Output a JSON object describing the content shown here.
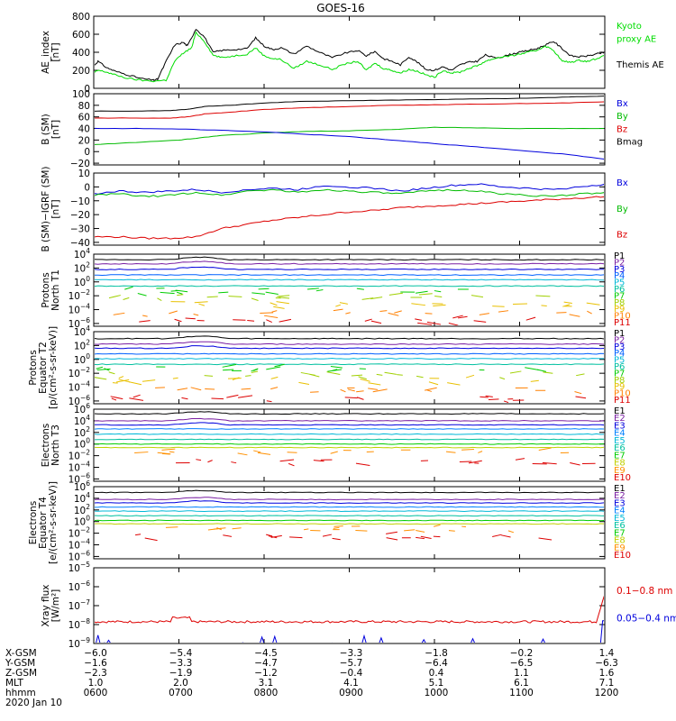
{
  "title": "GOES-16",
  "chart_data": [
    {
      "id": "ae",
      "type": "line",
      "ylabel": [
        "AE_index",
        "[nT]"
      ],
      "ylim": [
        0,
        800
      ],
      "yticks": [
        {
          "v": 0,
          "t": "0"
        },
        {
          "v": 200,
          "t": "200"
        },
        {
          "v": 400,
          "t": "400"
        },
        {
          "v": 600,
          "t": "600"
        },
        {
          "v": 800,
          "t": "800"
        }
      ],
      "legend": [
        {
          "text": "Kyoto",
          "color": "#00dd00",
          "row": 0
        },
        {
          "text": "proxy AE",
          "color": "#00dd00",
          "row": 1
        },
        {
          "text": "Themis AE",
          "color": "#000000",
          "row": 3
        }
      ],
      "series": [
        {
          "name": "Themis AE",
          "color": "#000000",
          "x": [
            6.0,
            6.05,
            6.15,
            6.25,
            6.4,
            6.55,
            6.7,
            6.75,
            6.85,
            6.95,
            7.05,
            7.1,
            7.2,
            7.3,
            7.4,
            7.5,
            7.65,
            7.8,
            7.9,
            8.0,
            8.1,
            8.2,
            8.35,
            8.5,
            8.65,
            8.8,
            8.95,
            9.1,
            9.2,
            9.3,
            9.4,
            9.5,
            9.6,
            9.7,
            9.8,
            9.9,
            10.0,
            10.1,
            10.2,
            10.3,
            10.4,
            10.5,
            10.6,
            10.7,
            10.8,
            10.9,
            11.0,
            11.1,
            11.2,
            11.3,
            11.4,
            11.5,
            11.6,
            11.7,
            11.8,
            11.9,
            12.0
          ],
          "y": [
            250,
            300,
            230,
            190,
            150,
            110,
            90,
            100,
            300,
            480,
            510,
            470,
            660,
            570,
            400,
            420,
            430,
            440,
            560,
            470,
            430,
            450,
            380,
            470,
            400,
            340,
            390,
            420,
            360,
            410,
            330,
            300,
            260,
            350,
            290,
            210,
            200,
            240,
            200,
            260,
            290,
            300,
            370,
            340,
            350,
            380,
            400,
            420,
            440,
            480,
            520,
            440,
            360,
            350,
            360,
            380,
            400
          ]
        },
        {
          "name": "Kyoto proxy AE",
          "color": "#00dd00",
          "x": [
            6.0,
            6.05,
            6.15,
            6.25,
            6.4,
            6.55,
            6.7,
            6.85,
            6.95,
            7.05,
            7.15,
            7.2,
            7.3,
            7.4,
            7.5,
            7.65,
            7.8,
            7.9,
            8.0,
            8.1,
            8.2,
            8.35,
            8.5,
            8.65,
            8.8,
            8.95,
            9.1,
            9.2,
            9.3,
            9.4,
            9.5,
            9.6,
            9.7,
            9.8,
            9.9,
            10.0,
            10.1,
            10.2,
            10.3,
            10.4,
            10.5,
            10.6,
            10.7,
            10.8,
            10.9,
            11.0,
            11.1,
            11.2,
            11.3,
            11.4,
            11.5,
            11.6,
            11.7,
            11.8,
            11.9,
            12.0
          ],
          "y": [
            170,
            200,
            180,
            150,
            110,
            90,
            80,
            90,
            300,
            390,
            450,
            620,
            520,
            370,
            340,
            360,
            380,
            450,
            360,
            330,
            320,
            220,
            300,
            260,
            210,
            270,
            300,
            200,
            280,
            220,
            200,
            170,
            210,
            190,
            150,
            120,
            200,
            170,
            180,
            220,
            250,
            300,
            330,
            350,
            360,
            380,
            400,
            420,
            470,
            420,
            300,
            290,
            310,
            300,
            330,
            360
          ]
        }
      ]
    },
    {
      "id": "bsm",
      "type": "line",
      "ylabel": [
        "B (SM)",
        "[nT]"
      ],
      "ylim": [
        -23,
        100
      ],
      "yticks": [
        {
          "v": -20,
          "t": "−20"
        },
        {
          "v": 0,
          "t": "0"
        },
        {
          "v": 20,
          "t": "20"
        },
        {
          "v": 40,
          "t": "40"
        },
        {
          "v": 60,
          "t": "60"
        },
        {
          "v": 80,
          "t": "80"
        },
        {
          "v": 100,
          "t": "100"
        }
      ],
      "legend": [
        {
          "text": "Bx",
          "color": "#0000dd",
          "row": 0
        },
        {
          "text": "By",
          "color": "#00bb00",
          "row": 1
        },
        {
          "text": "Bz",
          "color": "#dd0000",
          "row": 2
        },
        {
          "text": "Bmag",
          "color": "#000000",
          "row": 3
        }
      ],
      "series": [
        {
          "name": "Bmag",
          "color": "#000000",
          "x": [
            6.0,
            6.5,
            6.9,
            7.1,
            7.3,
            7.6,
            8.0,
            8.5,
            9.0,
            9.5,
            10.0,
            10.5,
            11.0,
            11.5,
            12.0
          ],
          "y": [
            70,
            70,
            71,
            73,
            78,
            80,
            84,
            87,
            88,
            89,
            90,
            91,
            92,
            94,
            96
          ]
        },
        {
          "name": "Bz",
          "color": "#dd0000",
          "x": [
            6.0,
            6.5,
            6.9,
            7.1,
            7.3,
            7.6,
            8.0,
            8.5,
            9.0,
            9.5,
            10.0,
            10.5,
            11.0,
            11.5,
            12.0
          ],
          "y": [
            58,
            58,
            58,
            60,
            65,
            68,
            73,
            76,
            78,
            80,
            81,
            82,
            83,
            84,
            86
          ]
        },
        {
          "name": "By",
          "color": "#00bb00",
          "x": [
            6.0,
            6.5,
            7.0,
            7.2,
            7.5,
            8.0,
            8.5,
            9.0,
            9.5,
            10.0,
            10.5,
            11.0,
            11.5,
            12.0
          ],
          "y": [
            12,
            16,
            20,
            23,
            28,
            32,
            35,
            36,
            38,
            42,
            41,
            40,
            40,
            40
          ]
        },
        {
          "name": "Bx",
          "color": "#0000dd",
          "x": [
            6.0,
            6.5,
            7.0,
            7.5,
            8.0,
            8.5,
            9.0,
            9.5,
            10.0,
            10.5,
            11.0,
            11.5,
            12.0
          ],
          "y": [
            40,
            40,
            39,
            37,
            34,
            30,
            26,
            20,
            14,
            8,
            2,
            -4,
            -13
          ]
        }
      ]
    },
    {
      "id": "bigrf",
      "type": "line",
      "ylabel": [
        "B (SM)−IGRF (SM)",
        "[nT]"
      ],
      "ylim": [
        -42,
        10
      ],
      "yticks": [
        {
          "v": -40,
          "t": "−40"
        },
        {
          "v": -30,
          "t": "−30"
        },
        {
          "v": -20,
          "t": "−20"
        },
        {
          "v": -10,
          "t": "−10"
        },
        {
          "v": 0,
          "t": "0"
        },
        {
          "v": 10,
          "t": "10"
        }
      ],
      "legend": [
        {
          "text": "Bx",
          "color": "#0000dd",
          "row": 0
        },
        {
          "text": "By",
          "color": "#00bb00",
          "row": 2
        },
        {
          "text": "Bz",
          "color": "#dd0000",
          "row": 4
        }
      ],
      "series": [
        {
          "name": "Bx",
          "color": "#0000dd",
          "x": [
            6.0,
            6.3,
            6.6,
            6.9,
            7.2,
            7.5,
            7.8,
            8.1,
            8.4,
            8.7,
            9.0,
            9.3,
            9.6,
            9.9,
            10.2,
            10.5,
            10.8,
            11.1,
            11.4,
            11.7,
            12.0
          ],
          "y": [
            -5,
            -3,
            -4,
            -3,
            -2,
            -4,
            -2,
            -1,
            -2,
            1,
            0,
            -1,
            -3,
            -1,
            1,
            2,
            0,
            -1,
            -2,
            0,
            2
          ]
        },
        {
          "name": "By",
          "color": "#00bb00",
          "x": [
            6.0,
            6.3,
            6.6,
            6.9,
            7.2,
            7.5,
            7.8,
            8.1,
            8.4,
            8.7,
            9.0,
            9.3,
            9.6,
            9.9,
            10.2,
            10.5,
            10.8,
            11.1,
            11.4,
            11.7,
            12.0
          ],
          "y": [
            -6,
            -5,
            -7,
            -6,
            -4,
            -6,
            -3,
            -2,
            -4,
            -2,
            -3,
            -4,
            -5,
            -3,
            -2,
            -3,
            -5,
            -6,
            -7,
            -5,
            -4
          ]
        },
        {
          "name": "Bz",
          "color": "#dd0000",
          "x": [
            6.0,
            6.3,
            6.6,
            6.9,
            7.2,
            7.5,
            7.8,
            8.1,
            8.4,
            8.7,
            9.0,
            9.3,
            9.6,
            9.9,
            10.2,
            10.5,
            10.8,
            11.1,
            11.4,
            11.7,
            12.0
          ],
          "y": [
            -36,
            -36,
            -37,
            -37,
            -36,
            -30,
            -27,
            -24,
            -22,
            -20,
            -18,
            -17,
            -15,
            -14,
            -13,
            -12,
            -11,
            -10,
            -9,
            -8,
            -7
          ]
        }
      ]
    },
    {
      "id": "pnt1",
      "type": "line",
      "scale": "log",
      "ylabel": [
        "Protons",
        "North T1"
      ],
      "ylim_exp": [
        -6.4,
        4
      ],
      "yticks_exp": [
        -6,
        -4,
        -2,
        0,
        2,
        4
      ],
      "channel_labels": [
        "P1",
        "P2",
        "P3",
        "P4",
        "P5",
        "P6",
        "P7",
        "P8",
        "P9",
        "P10",
        "P11"
      ],
      "channel_levels_exp": [
        3.2,
        2.6,
        1.8,
        1.0,
        0.3,
        -0.6,
        -1.3,
        -2.2,
        -3.2,
        -4.5,
        -5.6
      ],
      "channel_colors": [
        "#000000",
        "#7a1fa2",
        "#0000dd",
        "#0060ff",
        "#00b8d8",
        "#00c0a0",
        "#00cc00",
        "#a0d000",
        "#e8c000",
        "#ff8000",
        "#dd0000"
      ]
    },
    {
      "id": "peqt2",
      "type": "line",
      "scale": "log",
      "ylabel": [
        "Protons",
        "Equator T2",
        "[p/(cm²-s-sr-keV)]"
      ],
      "ylim_exp": [
        -6.4,
        4
      ],
      "yticks_exp": [
        -6,
        -4,
        -2,
        0,
        2,
        4
      ],
      "channel_labels": [
        "P1",
        "P2",
        "P3",
        "P4",
        "P5",
        "P6",
        "P7",
        "P8",
        "P9",
        "P10",
        "P11"
      ],
      "channel_levels_exp": [
        3.0,
        2.2,
        1.6,
        0.8,
        0.1,
        -0.7,
        -1.4,
        -2.2,
        -3.0,
        -4.4,
        -5.6
      ],
      "channel_colors": [
        "#000000",
        "#7a1fa2",
        "#0000dd",
        "#0060ff",
        "#00b8d8",
        "#00c0a0",
        "#00cc00",
        "#a0d000",
        "#e8c000",
        "#ff8000",
        "#dd0000"
      ]
    },
    {
      "id": "ent3",
      "type": "line",
      "scale": "log",
      "ylabel": [
        "Electrons",
        "North T3"
      ],
      "ylim_exp": [
        -6.4,
        6
      ],
      "yticks_exp": [
        -6,
        -4,
        -2,
        0,
        2,
        4,
        6
      ],
      "channel_labels": [
        "E1",
        "E2",
        "E3",
        "E4",
        "E5",
        "E6",
        "E7",
        "E8",
        "E9",
        "E10"
      ],
      "channel_levels_exp": [
        5.2,
        4.0,
        3.3,
        2.6,
        1.7,
        0.8,
        0.0,
        -0.6,
        -1.4,
        -3.0
      ],
      "channel_colors": [
        "#000000",
        "#7a1fa2",
        "#0000dd",
        "#0080ff",
        "#00b8d8",
        "#00c0a0",
        "#00cc00",
        "#c0d000",
        "#ff9000",
        "#dd0000"
      ]
    },
    {
      "id": "eeqt4",
      "type": "line",
      "scale": "log",
      "ylabel": [
        "Electrons",
        "Equator T4",
        "[e/(cm²-s-sr-keV)]"
      ],
      "ylim_exp": [
        -6.4,
        6
      ],
      "yticks_exp": [
        -6,
        -4,
        -2,
        0,
        2,
        4,
        6
      ],
      "channel_labels": [
        "E1",
        "E2",
        "E3",
        "E4",
        "E5",
        "E6",
        "E7",
        "E8",
        "E9",
        "E10"
      ],
      "channel_levels_exp": [
        5.0,
        3.8,
        3.2,
        2.5,
        1.8,
        1.0,
        0.2,
        -0.4,
        -1.2,
        -2.5
      ],
      "channel_colors": [
        "#000000",
        "#7a1fa2",
        "#0000dd",
        "#0080ff",
        "#00b8d8",
        "#00c0a0",
        "#00cc00",
        "#c0d000",
        "#ff9000",
        "#dd0000"
      ]
    },
    {
      "id": "xray",
      "type": "line",
      "scale": "log",
      "ylabel": [
        "Xray flux",
        "[W/m²]"
      ],
      "ylim_exp": [
        -9,
        -5
      ],
      "yticks_exp": [
        -9,
        -8,
        -7,
        -6,
        -5
      ],
      "legend": [
        {
          "text": "0.1−0.8 nm",
          "color": "#dd0000",
          "row": 1
        },
        {
          "text": "0.05−0.4 nm",
          "color": "#0000dd",
          "row": 3
        }
      ],
      "series": [
        {
          "name": "0.1−0.8 nm",
          "color": "#dd0000",
          "level_exp": -7.85
        },
        {
          "name": "0.05−0.4 nm",
          "color": "#0000dd",
          "level_exp": -9.0
        }
      ]
    }
  ],
  "x_axis": {
    "range": [
      6.0,
      12.0
    ],
    "rows": [
      {
        "label": "X-GSM",
        "values": [
          "−6.0",
          "−5.4",
          "−4.5",
          "−3.3",
          "−1.8",
          "−0.2",
          "1.4"
        ]
      },
      {
        "label": "Y-GSM",
        "values": [
          "−1.6",
          "−3.3",
          "−4.7",
          "−5.7",
          "−6.4",
          "−6.5",
          "−6.3"
        ]
      },
      {
        "label": "Z-GSM",
        "values": [
          "−2.3",
          "−1.9",
          "−1.2",
          "−0.4",
          "0.4",
          "1.1",
          "1.6"
        ]
      },
      {
        "label": "MLT",
        "values": [
          "1.0",
          "2.0",
          "3.1",
          "4.1",
          "5.1",
          "6.1",
          "7.1"
        ]
      },
      {
        "label": "hhmm",
        "values": [
          "0600",
          "0700",
          "0800",
          "0900",
          "1000",
          "1100",
          "1200"
        ]
      }
    ],
    "date": "2020 Jan 10"
  }
}
